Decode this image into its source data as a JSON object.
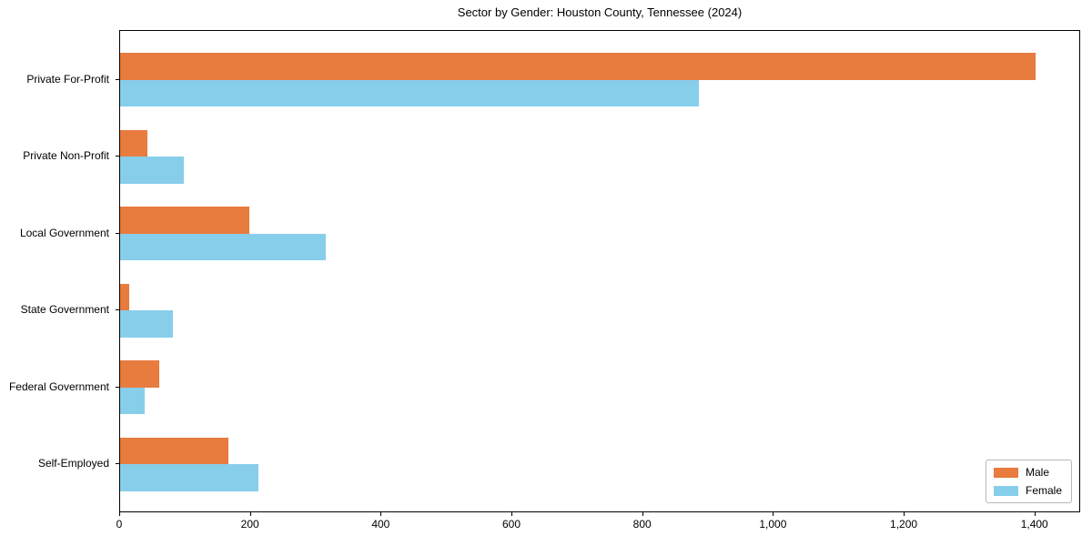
{
  "chart_data": {
    "type": "bar",
    "orientation": "horizontal",
    "title": "Sector by Gender: Houston County, Tennessee (2024)",
    "categories": [
      "Private For-Profit",
      "Private Non-Profit",
      "Local Government",
      "State Government",
      "Federal Government",
      "Self-Employed"
    ],
    "series": [
      {
        "name": "Male",
        "color": "#e87b3e",
        "values": [
          1400,
          42,
          198,
          14,
          60,
          166
        ]
      },
      {
        "name": "Female",
        "color": "#87ceeb",
        "values": [
          885,
          98,
          315,
          81,
          38,
          212
        ]
      }
    ],
    "xlabel": "",
    "ylabel": "",
    "xlim": [
      0,
      1470
    ],
    "xtick_values": [
      0,
      200,
      400,
      600,
      800,
      1000,
      1200,
      1400
    ],
    "xtick_labels": [
      "0",
      "200",
      "400",
      "600",
      "800",
      "1,000",
      "1,200",
      "1,400"
    ],
    "grid": false,
    "legend_position": "lower right",
    "colors": {
      "male_bar": "#e87b3e",
      "female_bar": "#87ceeb",
      "spine": "#000000",
      "background": "#ffffff"
    }
  }
}
